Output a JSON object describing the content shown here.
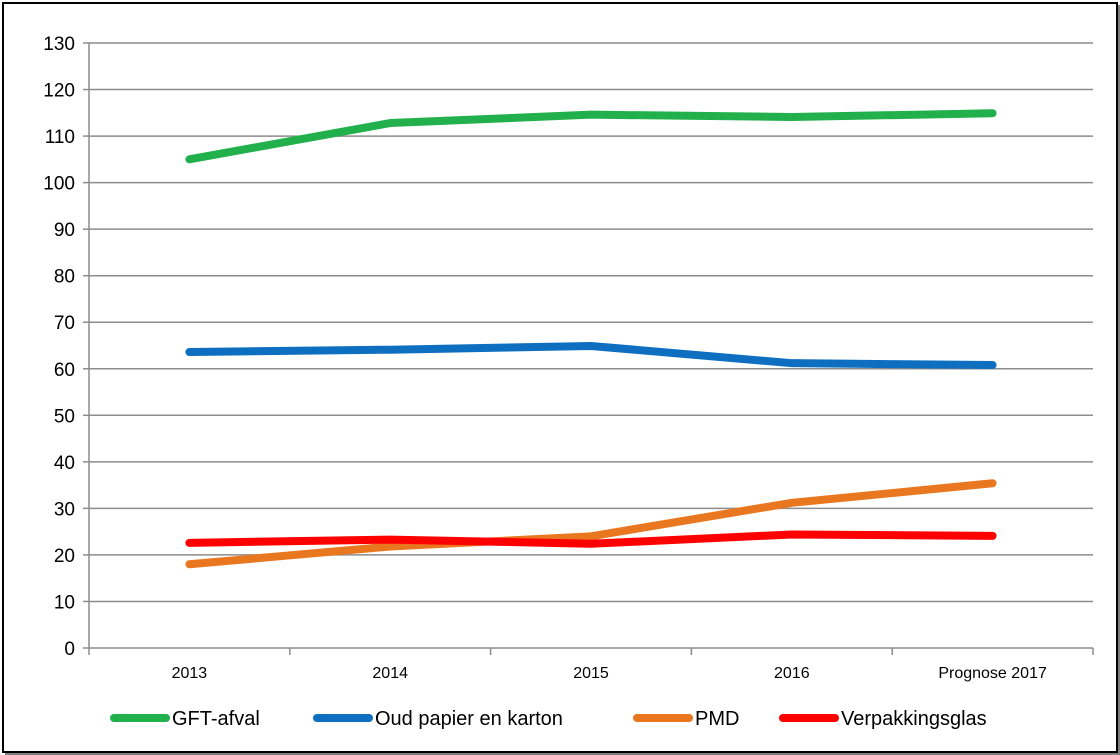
{
  "chart_data": {
    "type": "line",
    "title": "",
    "xlabel": "",
    "ylabel": "",
    "categories": [
      "2013",
      "2014",
      "2015",
      "2016",
      "Prognose 2017"
    ],
    "ylim": [
      0,
      130
    ],
    "yticks": [
      0,
      10,
      20,
      30,
      40,
      50,
      60,
      70,
      80,
      90,
      100,
      110,
      120,
      130
    ],
    "grid": "horizontal",
    "legend_position": "bottom",
    "series": [
      {
        "name": "GFT-afval",
        "color": "#21b04b",
        "values": [
          105,
          112.8,
          114.6,
          114.1,
          114.9
        ]
      },
      {
        "name": "Oud papier en karton",
        "color": "#0e6fc0",
        "values": [
          63.6,
          64.1,
          64.9,
          61.2,
          60.8
        ]
      },
      {
        "name": "PMD",
        "color": "#e97720",
        "values": [
          18,
          21.8,
          24,
          31.2,
          35.4
        ]
      },
      {
        "name": "Verpakkingsglas",
        "color": "#ff0000",
        "values": [
          22.6,
          23.3,
          22.4,
          24.4,
          24.1
        ]
      }
    ]
  }
}
